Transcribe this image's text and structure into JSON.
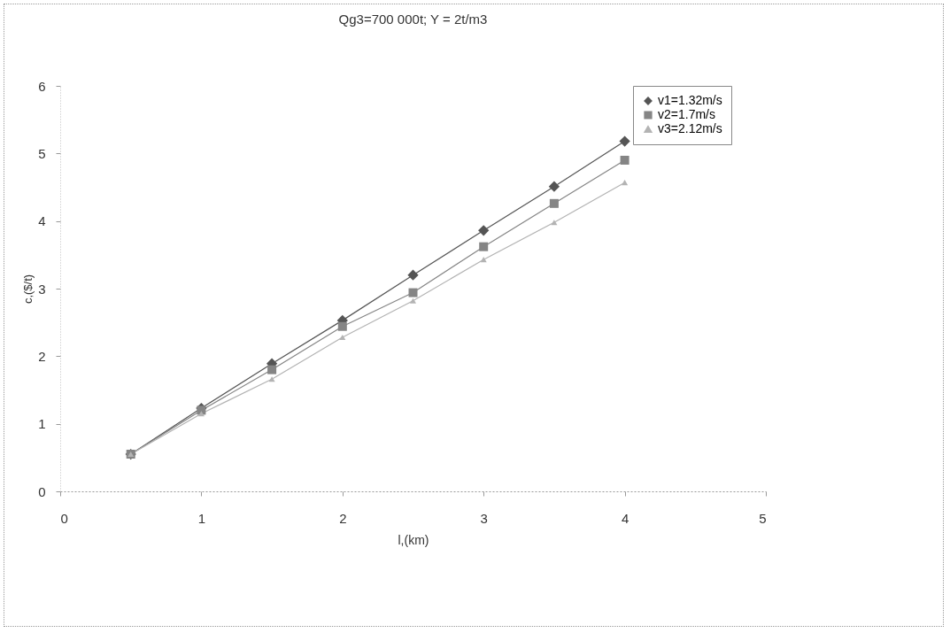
{
  "chart_data": {
    "type": "line",
    "title": "Qg3=700 000t; Y = 2t/m3",
    "xlabel": "l,(km)",
    "ylabel": "c,($/t)",
    "x": [
      0.5,
      1,
      1.5,
      2,
      2.5,
      3,
      3.5,
      4
    ],
    "series": [
      {
        "name": "v1=1.32m/s",
        "color": "#555555",
        "marker": "diamond",
        "values": [
          0.55,
          1.23,
          1.89,
          2.53,
          3.2,
          3.86,
          4.51,
          5.18
        ]
      },
      {
        "name": "v2=1.7m/s",
        "color": "#858585",
        "marker": "square",
        "values": [
          0.55,
          1.2,
          1.8,
          2.44,
          2.94,
          3.62,
          4.26,
          4.9
        ]
      },
      {
        "name": "v3=2.12m/s",
        "color": "#b3b3b3",
        "marker": "triangle",
        "values": [
          0.55,
          1.15,
          1.66,
          2.28,
          2.82,
          3.43,
          3.98,
          4.57
        ]
      }
    ],
    "xlim": [
      0,
      5
    ],
    "xticks": [
      0,
      1,
      2,
      3,
      4,
      5
    ],
    "ylim": [
      0,
      6
    ],
    "yticks": [
      0,
      1,
      2,
      3,
      4,
      5,
      6
    ],
    "grid": false,
    "legend": "right",
    "line_style": "solid"
  }
}
